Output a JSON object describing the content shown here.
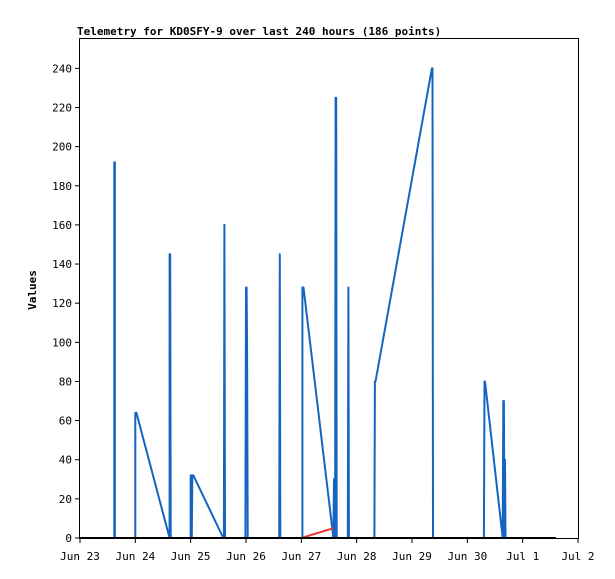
{
  "chart_data": {
    "type": "line",
    "title": "Telemetry for KD0SFY-9 over last 240 hours (186 points)",
    "xlabel": "",
    "ylabel": "Values",
    "ylim": [
      0,
      255
    ],
    "yticks": [
      0,
      20,
      40,
      60,
      80,
      100,
      120,
      140,
      160,
      180,
      200,
      220,
      240
    ],
    "xlim": [
      0,
      9
    ],
    "xticks": [
      {
        "x": 0,
        "label": "Jun 23"
      },
      {
        "x": 1,
        "label": "Jun 24"
      },
      {
        "x": 2,
        "label": "Jun 25"
      },
      {
        "x": 3,
        "label": "Jun 26"
      },
      {
        "x": 4,
        "label": "Jun 27"
      },
      {
        "x": 5,
        "label": "Jun 28"
      },
      {
        "x": 6,
        "label": "Jun 29"
      },
      {
        "x": 7,
        "label": "Jun 30"
      },
      {
        "x": 8,
        "label": "Jul 1"
      },
      {
        "x": 9,
        "label": "Jul 2"
      }
    ],
    "grid": false,
    "legend": "none",
    "series": [
      {
        "color": "#1565c0",
        "x": [
          0.0,
          0.62,
          0.62,
          0.63,
          0.63,
          1.0,
          1.0,
          1.01,
          1.02,
          1.62,
          1.62,
          1.63,
          1.64,
          1.65,
          2.0,
          2.0,
          2.01,
          2.02,
          2.03,
          2.04,
          2.05,
          2.59,
          2.6,
          2.61,
          2.61,
          2.62,
          2.99,
          3.0,
          3.01,
          3.02,
          3.02,
          3.03,
          3.04,
          3.6,
          3.61,
          3.61,
          3.62,
          4.02,
          4.02,
          4.03,
          4.04,
          4.58,
          4.59,
          4.6,
          4.6,
          4.61,
          4.62,
          4.63,
          4.64,
          4.65,
          4.66,
          4.84,
          4.85,
          4.85,
          4.86,
          5.32,
          5.33,
          5.33,
          5.34,
          6.36,
          6.37,
          6.38,
          7.3,
          7.31,
          7.32,
          7.64,
          7.65,
          7.66,
          7.67,
          7.68,
          7.69,
          8.6
        ],
        "y": [
          0,
          0,
          192,
          192,
          0,
          0,
          64,
          64,
          64,
          0,
          145,
          145,
          0,
          0,
          0,
          32,
          32,
          0,
          32,
          32,
          32,
          0,
          0,
          160,
          160,
          0,
          0,
          128,
          128,
          96,
          96,
          0,
          0,
          0,
          145,
          145,
          0,
          0,
          128,
          128,
          128,
          0,
          30,
          30,
          0,
          0,
          225,
          225,
          0,
          0,
          0,
          0,
          128,
          128,
          0,
          0,
          80,
          80,
          80,
          240,
          240,
          0,
          0,
          80,
          80,
          0,
          70,
          70,
          0,
          40,
          0,
          0
        ]
      },
      {
        "color": "#e53935",
        "x": [
          4.0,
          4.58
        ],
        "y": [
          0,
          5
        ]
      },
      {
        "color": "#000000",
        "x": [
          0.0,
          8.6
        ],
        "y": [
          0,
          0
        ]
      }
    ]
  }
}
